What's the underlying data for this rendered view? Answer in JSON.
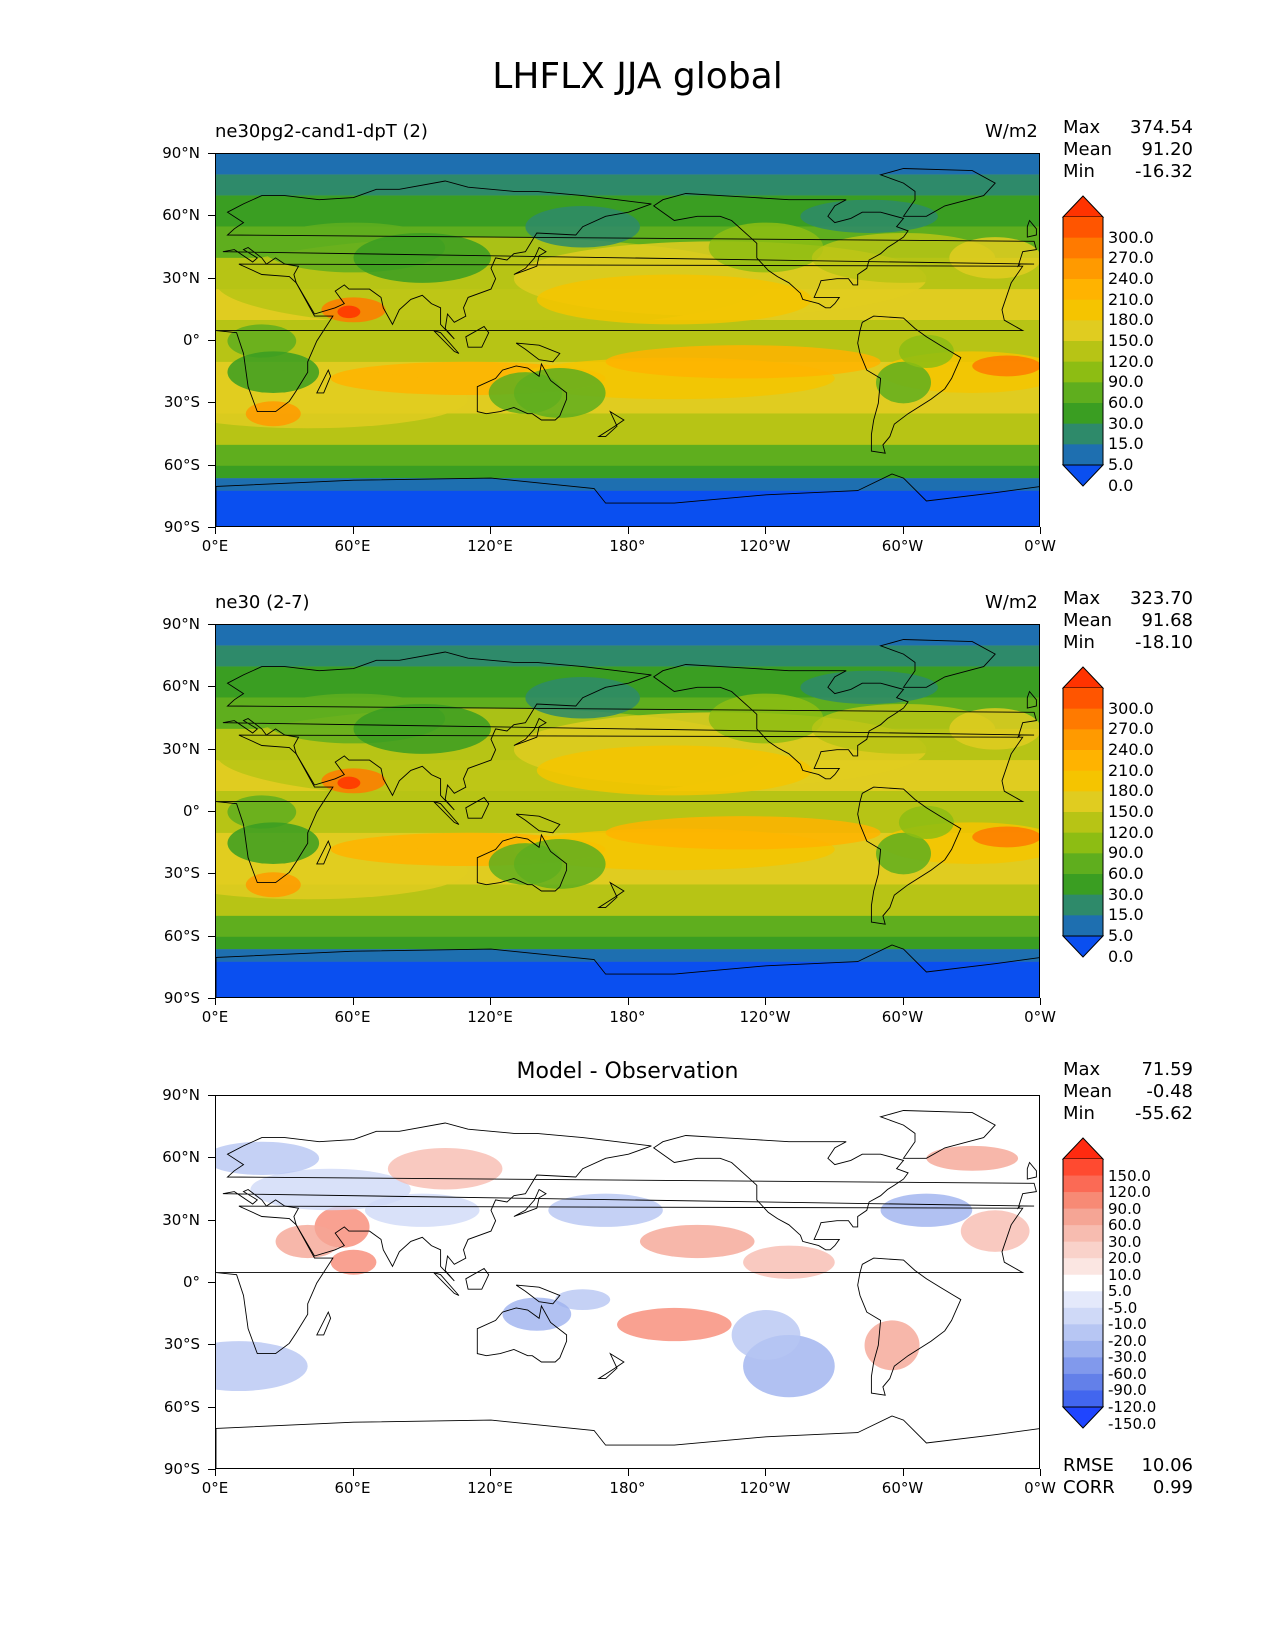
{
  "figure": {
    "title": "LHFLX JJA global",
    "x_ticks": [
      "0°E",
      "60°E",
      "120°E",
      "180°",
      "120°W",
      "60°W",
      "0°W"
    ],
    "y_ticks": [
      "90°N",
      "60°N",
      "30°N",
      "0°",
      "30°S",
      "60°S",
      "90°S"
    ]
  },
  "panels": [
    {
      "name": "ne30pg2-cand1-dpT (2)",
      "units": "W/m2",
      "stats": [
        [
          "Max",
          "374.54"
        ],
        [
          "Mean",
          "91.20"
        ],
        [
          "Min",
          "-16.32"
        ]
      ],
      "colorbar": {
        "labels": [
          "300.0",
          "270.0",
          "240.0",
          "210.0",
          "180.0",
          "150.0",
          "120.0",
          "90.0",
          "60.0",
          "30.0",
          "15.0",
          "5.0",
          "0.0"
        ],
        "colors": [
          "#ff3300",
          "#ff5500",
          "#ff7a00",
          "#ff9a00",
          "#ffb300",
          "#f5c400",
          "#e0cc20",
          "#b7c415",
          "#8dbd13",
          "#5fae1e",
          "#3a9e22",
          "#2e8a6a",
          "#1e6fb0",
          "#0a4ff0"
        ]
      }
    },
    {
      "name": "ne30 (2-7)",
      "units": "W/m2",
      "stats": [
        [
          "Max",
          "323.70"
        ],
        [
          "Mean",
          "91.68"
        ],
        [
          "Min",
          "-18.10"
        ]
      ],
      "colorbar": {
        "labels": [
          "300.0",
          "270.0",
          "240.0",
          "210.0",
          "180.0",
          "150.0",
          "120.0",
          "90.0",
          "60.0",
          "30.0",
          "15.0",
          "5.0",
          "0.0"
        ],
        "colors": [
          "#ff3300",
          "#ff5500",
          "#ff7a00",
          "#ff9a00",
          "#ffb300",
          "#f5c400",
          "#e0cc20",
          "#b7c415",
          "#8dbd13",
          "#5fae1e",
          "#3a9e22",
          "#2e8a6a",
          "#1e6fb0",
          "#0a4ff0"
        ]
      }
    },
    {
      "name": "Model - Observation",
      "stats": [
        [
          "Max",
          "71.59"
        ],
        [
          "Mean",
          "-0.48"
        ],
        [
          "Min",
          "-55.62"
        ]
      ],
      "extra_stats": [
        [
          "RMSE",
          "10.06"
        ],
        [
          "CORR",
          "0.99"
        ]
      ],
      "colorbar": {
        "labels": [
          "150.0",
          "120.0",
          "90.0",
          "60.0",
          "30.0",
          "20.0",
          "10.0",
          "5.0",
          "-5.0",
          "-10.0",
          "-20.0",
          "-30.0",
          "-60.0",
          "-90.0",
          "-120.0",
          "-150.0"
        ],
        "colors": [
          "#ff2a10",
          "#ff4a30",
          "#fb6a55",
          "#f78a75",
          "#f5a595",
          "#f7bcb0",
          "#f9d2ca",
          "#fbe6e2",
          "#ffffff",
          "#e4e9fb",
          "#cfd9f7",
          "#b7c6f3",
          "#9db1ef",
          "#8199ec",
          "#6380e9",
          "#4266ef",
          "#1f45ff"
        ]
      }
    }
  ]
}
